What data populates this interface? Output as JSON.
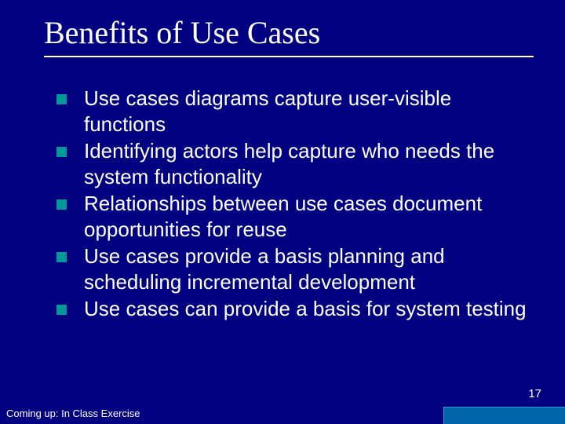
{
  "slide": {
    "title": "Benefits of Use Cases",
    "title_font": "Times New Roman",
    "title_fontsize": 40,
    "title_color": "#ffffff",
    "underline_color": "#ffffff",
    "background_color": "#000080",
    "bullets": [
      "Use cases diagrams capture user-visible functions",
      "Identifying actors help capture who needs the system functionality",
      "Relationships between use cases document opportunities for reuse",
      "Use cases provide a basis planning and scheduling incremental development",
      "Use cases can provide a basis for system testing"
    ],
    "bullet_marker_color": "#009999",
    "bullet_marker_size": 13,
    "bullet_text_color": "#ffffff",
    "bullet_fontsize": 26,
    "page_number": "17",
    "footer_text": "Coming up: In Class Exercise",
    "footer_fontsize": 13,
    "accent_box_color": "#0066aa",
    "accent_box_width": 155,
    "accent_box_height": 22
  }
}
